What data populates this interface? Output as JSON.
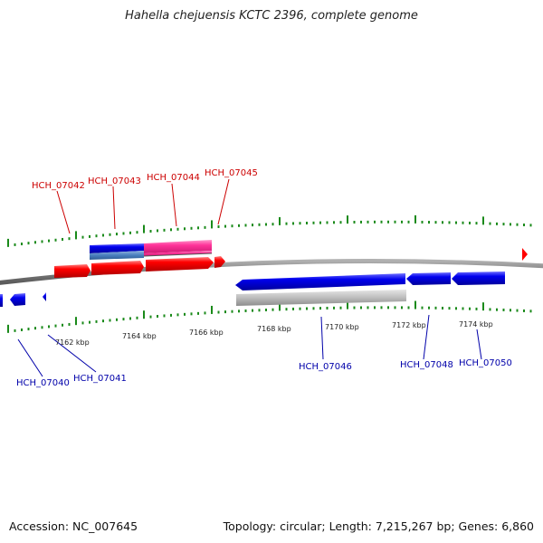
{
  "title": "Hahella chejuensis KCTC 2396, complete genome",
  "accession": "Accession: NC_007645",
  "summary": "Topology: circular; Length: 7,215,267 bp; Genes: 6,860",
  "colors": {
    "forward_gene": "#ff0000",
    "forward_gene_label": "#cc0000",
    "reverse_gene": "#0000ee",
    "reverse_gene_label": "#0000aa",
    "pink_feature": "#ff3399",
    "steelblue_feature": "#4a7fbf",
    "grey_feature": "#bdbdbd",
    "backbone": "#808080",
    "ticks": "#1a8a1a"
  },
  "scale_labels": [
    "7162 kbp",
    "7164 kbp",
    "7166 kbp",
    "7168 kbp",
    "7170 kbp",
    "7172 kbp",
    "7174 kbp"
  ],
  "forward_gene_labels": [
    "HCH_07042",
    "HCH_07043",
    "HCH_07044",
    "HCH_07045"
  ],
  "reverse_gene_labels": [
    "HCH_07040",
    "HCH_07041",
    "HCH_07046",
    "HCH_07048",
    "HCH_07050"
  ]
}
